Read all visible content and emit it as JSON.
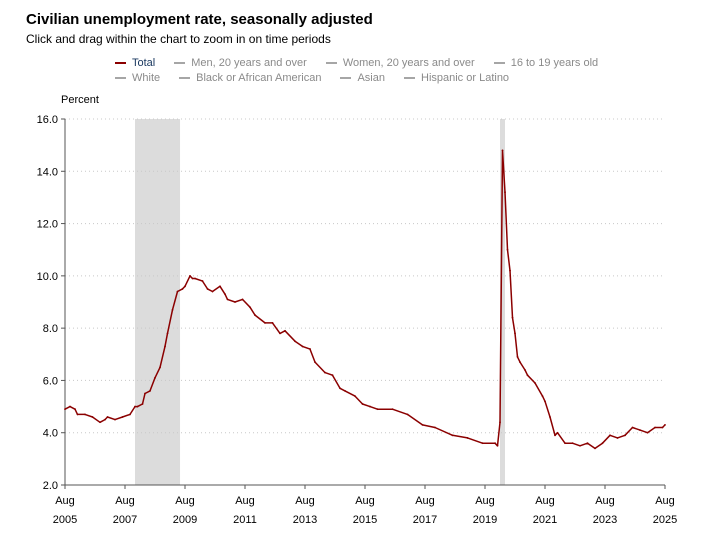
{
  "header": {
    "title": "Civilian unemployment rate, seasonally adjusted",
    "subtitle": "Click and drag within the chart to zoom in on time periods"
  },
  "legend": {
    "row1": [
      {
        "label": "Total",
        "active": true
      },
      {
        "label": "Men, 20 years and over",
        "active": false
      },
      {
        "label": "Women, 20 years and over",
        "active": false
      },
      {
        "label": "16 to 19 years old",
        "active": false
      }
    ],
    "row2": [
      {
        "label": "White",
        "active": false
      },
      {
        "label": "Black or African American",
        "active": false
      },
      {
        "label": "Asian",
        "active": false
      },
      {
        "label": "Hispanic or Latino",
        "active": false
      }
    ]
  },
  "colors": {
    "series": "#8b0000",
    "recession": "#dcdcdc",
    "grid": "#c8c8c8",
    "legend_inactive": "#a6a6a6"
  },
  "chart_data": {
    "type": "line",
    "title": "Civilian unemployment rate, seasonally adjusted",
    "ylabel": "Percent",
    "xlabel": "",
    "ylim": [
      2.0,
      16.0
    ],
    "xlim": [
      2005.583,
      2025.583
    ],
    "y_ticks": [
      "2.0",
      "4.0",
      "6.0",
      "8.0",
      "10.0",
      "12.0",
      "14.0",
      "16.0"
    ],
    "x_ticks": [
      {
        "t": 2005.583,
        "month": "Aug",
        "year": "2005"
      },
      {
        "t": 2007.583,
        "month": "Aug",
        "year": "2007"
      },
      {
        "t": 2009.583,
        "month": "Aug",
        "year": "2009"
      },
      {
        "t": 2011.583,
        "month": "Aug",
        "year": "2011"
      },
      {
        "t": 2013.583,
        "month": "Aug",
        "year": "2013"
      },
      {
        "t": 2015.583,
        "month": "Aug",
        "year": "2015"
      },
      {
        "t": 2017.583,
        "month": "Aug",
        "year": "2017"
      },
      {
        "t": 2019.583,
        "month": "Aug",
        "year": "2019"
      },
      {
        "t": 2021.583,
        "month": "Aug",
        "year": "2021"
      },
      {
        "t": 2023.583,
        "month": "Aug",
        "year": "2023"
      },
      {
        "t": 2025.583,
        "month": "Aug",
        "year": "2025"
      }
    ],
    "recessions": [
      {
        "start": 2007.917,
        "end": 2009.417
      },
      {
        "start": 2020.083,
        "end": 2020.25
      }
    ],
    "grid": true,
    "series": [
      {
        "name": "Total",
        "x": [
          2005.583,
          2005.75,
          2005.917,
          2006.0,
          2006.25,
          2006.5,
          2006.75,
          2006.917,
          2007.0,
          2007.25,
          2007.5,
          2007.75,
          2007.917,
          2008.0,
          2008.167,
          2008.25,
          2008.417,
          2008.583,
          2008.75,
          2008.917,
          2009.0,
          2009.167,
          2009.333,
          2009.5,
          2009.583,
          2009.75,
          2009.833,
          2009.917,
          2010.167,
          2010.333,
          2010.5,
          2010.75,
          2010.917,
          2011.0,
          2011.25,
          2011.5,
          2011.75,
          2011.917,
          2012.25,
          2012.5,
          2012.75,
          2012.917,
          2013.25,
          2013.5,
          2013.75,
          2013.917,
          2014.25,
          2014.5,
          2014.75,
          2014.917,
          2015.25,
          2015.5,
          2015.75,
          2016.0,
          2016.5,
          2017.0,
          2017.5,
          2017.917,
          2018.5,
          2019.0,
          2019.5,
          2019.917,
          2020.0,
          2020.083,
          2020.167,
          2020.25,
          2020.333,
          2020.417,
          2020.5,
          2020.583,
          2020.667,
          2020.75,
          2020.917,
          2021.0,
          2021.25,
          2021.5,
          2021.583,
          2021.75,
          2021.917,
          2022.0,
          2022.25,
          2022.5,
          2022.75,
          2023.0,
          2023.25,
          2023.5,
          2023.75,
          2024.0,
          2024.25,
          2024.5,
          2024.75,
          2025.0,
          2025.25,
          2025.5,
          2025.583
        ],
        "values": [
          4.9,
          5.0,
          4.9,
          4.7,
          4.7,
          4.6,
          4.4,
          4.5,
          4.6,
          4.5,
          4.6,
          4.7,
          5.0,
          5.0,
          5.1,
          5.5,
          5.6,
          6.1,
          6.5,
          7.3,
          7.8,
          8.7,
          9.4,
          9.5,
          9.6,
          10.0,
          9.9,
          9.9,
          9.8,
          9.5,
          9.4,
          9.6,
          9.3,
          9.1,
          9.0,
          9.1,
          8.8,
          8.5,
          8.2,
          8.2,
          7.8,
          7.9,
          7.5,
          7.3,
          7.2,
          6.7,
          6.3,
          6.2,
          5.7,
          5.6,
          5.4,
          5.1,
          5.0,
          4.9,
          4.9,
          4.7,
          4.3,
          4.2,
          3.9,
          3.8,
          3.6,
          3.6,
          3.5,
          4.4,
          14.8,
          13.2,
          11.0,
          10.2,
          8.4,
          7.8,
          6.9,
          6.7,
          6.4,
          6.2,
          5.9,
          5.4,
          5.2,
          4.6,
          3.9,
          4.0,
          3.6,
          3.6,
          3.5,
          3.6,
          3.4,
          3.6,
          3.9,
          3.8,
          3.9,
          4.2,
          4.1,
          4.0,
          4.2,
          4.2,
          4.3
        ]
      }
    ]
  }
}
